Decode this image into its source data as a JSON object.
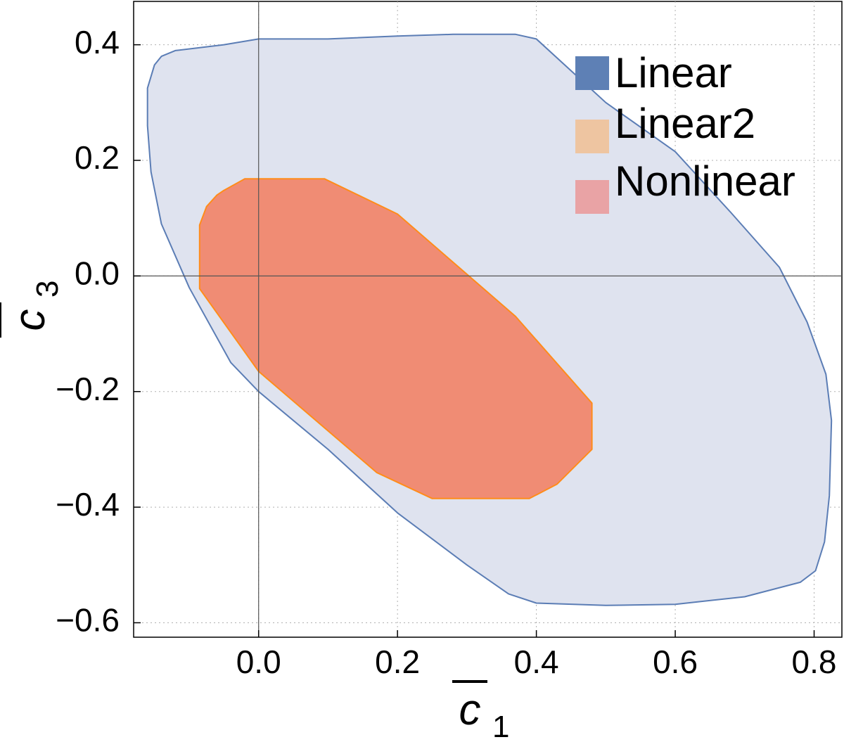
{
  "chart_data": {
    "type": "area",
    "title": "",
    "xlabel": "c̅",
    "xlabel_subscript": "1",
    "ylabel": "c̅",
    "ylabel_subscript": "3",
    "xlim": [
      -0.18,
      0.84
    ],
    "ylim": [
      -0.625,
      0.475
    ],
    "x_ticks": [
      0.0,
      0.2,
      0.4,
      0.6,
      0.8
    ],
    "x_tick_labels": [
      "0.0",
      "0.2",
      "0.4",
      "0.6",
      "0.8"
    ],
    "y_ticks": [
      -0.6,
      -0.4,
      -0.2,
      0.0,
      0.2,
      0.4
    ],
    "y_tick_labels": [
      "−0.6",
      "−0.4",
      "−0.2",
      "0.0",
      "0.2",
      "0.4"
    ],
    "grid": true,
    "legend_position": "top-right",
    "series": [
      {
        "name": "Linear",
        "fill": "#dfe3ef",
        "stroke": "#5b7db5",
        "legend_color": "#5e80b5",
        "points": [
          [
            -0.16,
            0.325
          ],
          [
            -0.15,
            0.365
          ],
          [
            -0.14,
            0.38
          ],
          [
            -0.12,
            0.39
          ],
          [
            -0.05,
            0.4
          ],
          [
            0.0,
            0.41
          ],
          [
            0.1,
            0.41
          ],
          [
            0.2,
            0.415
          ],
          [
            0.28,
            0.418
          ],
          [
            0.37,
            0.418
          ],
          [
            0.4,
            0.41
          ],
          [
            0.5,
            0.3
          ],
          [
            0.6,
            0.215
          ],
          [
            0.68,
            0.11
          ],
          [
            0.75,
            0.015
          ],
          [
            0.79,
            -0.08
          ],
          [
            0.817,
            -0.17
          ],
          [
            0.825,
            -0.25
          ],
          [
            0.822,
            -0.38
          ],
          [
            0.815,
            -0.46
          ],
          [
            0.802,
            -0.51
          ],
          [
            0.78,
            -0.53
          ],
          [
            0.7,
            -0.555
          ],
          [
            0.6,
            -0.568
          ],
          [
            0.5,
            -0.57
          ],
          [
            0.4,
            -0.566
          ],
          [
            0.36,
            -0.55
          ],
          [
            0.3,
            -0.5
          ],
          [
            0.2,
            -0.41
          ],
          [
            0.1,
            -0.3
          ],
          [
            0.0,
            -0.2
          ],
          [
            -0.04,
            -0.15
          ],
          [
            -0.1,
            -0.02
          ],
          [
            -0.14,
            0.09
          ],
          [
            -0.155,
            0.18
          ],
          [
            -0.16,
            0.26
          ]
        ]
      },
      {
        "name": "Linear2",
        "fill": "#f08c74",
        "stroke": "#ff8c1a",
        "legend_color": "#eec5a1",
        "points": [
          [
            -0.02,
            0.168
          ],
          [
            0.095,
            0.168
          ],
          [
            0.2,
            0.107
          ],
          [
            0.37,
            -0.07
          ],
          [
            0.48,
            -0.22
          ],
          [
            0.48,
            -0.3
          ],
          [
            0.43,
            -0.36
          ],
          [
            0.39,
            -0.385
          ],
          [
            0.25,
            -0.385
          ],
          [
            0.17,
            -0.34
          ],
          [
            0.0,
            -0.165
          ],
          [
            -0.085,
            -0.022
          ],
          [
            -0.085,
            0.088
          ],
          [
            -0.075,
            0.12
          ],
          [
            -0.06,
            0.14
          ],
          [
            -0.05,
            0.148
          ]
        ]
      },
      {
        "name": "Nonlinear",
        "fill": "#e8a6a4",
        "stroke": "#e8a6a4",
        "legend_color": "#e9a3a5",
        "points": []
      }
    ]
  }
}
